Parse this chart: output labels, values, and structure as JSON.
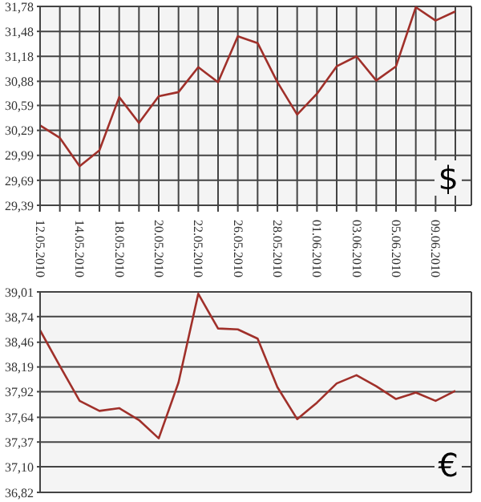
{
  "chart_data": [
    {
      "type": "line",
      "categories": [
        "12.05.2010",
        null,
        "14.05.2010",
        null,
        "18.05.2010",
        null,
        "20.05.2010",
        null,
        "22.05.2010",
        null,
        "26.05.2010",
        null,
        "28.05.2010",
        null,
        "01.06.2010",
        null,
        "03.06.2010",
        null,
        "05.06.2010",
        null,
        "09.06.2010",
        null
      ],
      "series": [
        {
          "color": "#a0302a",
          "values": [
            30.35,
            30.2,
            29.86,
            30.05,
            30.69,
            30.38,
            30.7,
            30.75,
            31.05,
            30.87,
            31.42,
            31.34,
            30.87,
            30.48,
            30.73,
            31.06,
            31.18,
            30.89,
            31.06,
            31.77,
            31.61,
            31.72
          ]
        }
      ],
      "ylim": [
        29.39,
        31.78
      ],
      "yticks": [
        {
          "value": 29.39,
          "label": "29,39"
        },
        {
          "value": 29.69,
          "label": "29,69"
        },
        {
          "value": 29.99,
          "label": "29,99"
        },
        {
          "value": 30.29,
          "label": "30,29"
        },
        {
          "value": 30.59,
          "label": "30,59"
        },
        {
          "value": 30.88,
          "label": "30,88"
        },
        {
          "value": 31.18,
          "label": "31,18"
        },
        {
          "value": 31.48,
          "label": "31,48"
        },
        {
          "value": 31.78,
          "label": "31,78"
        }
      ],
      "grid": true,
      "legend": false,
      "marker": "none",
      "annotations": [
        "$"
      ]
    },
    {
      "type": "line",
      "categories": [
        "12.05.2010",
        null,
        "14.05.2010",
        null,
        "18.05.2010",
        null,
        "20.05.2010",
        null,
        "22.05.2010",
        null,
        "26.05.2010",
        null,
        "28.05.2010",
        null,
        "01.06.2010",
        null,
        "03.06.2010",
        null,
        "05.06.2010",
        null,
        "09.06.2010",
        null
      ],
      "series": [
        {
          "color": "#a0302a",
          "values": [
            38.59,
            38.2,
            37.82,
            37.71,
            37.74,
            37.61,
            37.41,
            38.02,
            38.99,
            38.61,
            38.6,
            38.5,
            37.97,
            37.62,
            37.8,
            38.01,
            38.1,
            37.98,
            37.84,
            37.91,
            37.82,
            37.93
          ]
        }
      ],
      "ylim": [
        36.82,
        39.01
      ],
      "yticks": [
        {
          "value": 36.82,
          "label": "36,82"
        },
        {
          "value": 37.1,
          "label": "37,10"
        },
        {
          "value": 37.37,
          "label": "37,37"
        },
        {
          "value": 37.64,
          "label": "37,64"
        },
        {
          "value": 37.92,
          "label": "37,92"
        },
        {
          "value": 38.19,
          "label": "38,19"
        },
        {
          "value": 38.46,
          "label": "38,46"
        },
        {
          "value": 38.74,
          "label": "38,74"
        },
        {
          "value": 39.01,
          "label": "39,01"
        }
      ],
      "grid": true,
      "legend": false,
      "marker": "none",
      "tick_labels": "y",
      "annotations": [
        "€"
      ]
    }
  ]
}
